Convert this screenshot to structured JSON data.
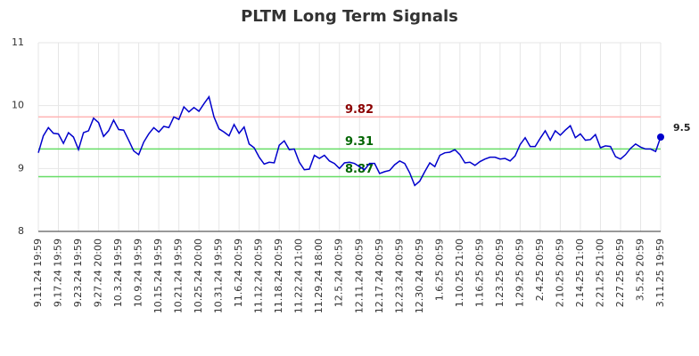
{
  "chart_data": {
    "type": "line",
    "title": "PLTM Long Term Signals",
    "categories": [
      "9.11.24 19:59",
      null,
      null,
      null,
      "9.17.24 19:59",
      null,
      null,
      null,
      "9.23.24 19:59",
      null,
      null,
      null,
      "9.27.24 20:00",
      null,
      null,
      null,
      "10.3.24 19:59",
      null,
      null,
      null,
      "10.9.24 19:59",
      null,
      null,
      null,
      "10.15.24 19:59",
      null,
      null,
      null,
      "10.21.24 19:59",
      null,
      null,
      null,
      "10.25.24 20:00",
      null,
      null,
      null,
      "10.31.24 19:59",
      null,
      null,
      null,
      "11.6.24 20:59",
      null,
      null,
      null,
      "11.12.24 20:59",
      null,
      null,
      null,
      "11.18.24 20:59",
      null,
      null,
      null,
      "11.22.24 21:00",
      null,
      null,
      null,
      "11.29.24 18:00",
      null,
      null,
      null,
      "12.5.24 20:59",
      null,
      null,
      null,
      "12.11.24 20:59",
      null,
      null,
      null,
      "12.17.24 20:59",
      null,
      null,
      null,
      "12.23.24 20:59",
      null,
      null,
      null,
      "12.30.24 20:59",
      null,
      null,
      null,
      "1.6.25 20:59",
      null,
      null,
      null,
      "1.10.25 21:00",
      null,
      null,
      null,
      "1.16.25 20:59",
      null,
      null,
      null,
      "1.23.25 20:59",
      null,
      null,
      null,
      "1.29.25 20:59",
      null,
      null,
      null,
      "2.4.25 20:59",
      null,
      null,
      null,
      "2.10.25 20:59",
      null,
      null,
      null,
      "2.14.25 21:00",
      null,
      null,
      null,
      "2.21.25 21:00",
      null,
      null,
      null,
      "2.27.25 20:59",
      null,
      null,
      null,
      "3.5.25 20:59",
      null,
      null,
      null,
      "3.11.25 19:59"
    ],
    "series": [
      {
        "name": "PLTM",
        "color": "#0000cc",
        "values": [
          9.25,
          9.52,
          9.65,
          9.56,
          9.55,
          9.4,
          9.57,
          9.5,
          9.3,
          9.57,
          9.6,
          9.8,
          9.73,
          9.51,
          9.6,
          9.77,
          9.62,
          9.61,
          9.45,
          9.28,
          9.22,
          9.42,
          9.55,
          9.65,
          9.58,
          9.67,
          9.65,
          9.82,
          9.78,
          9.98,
          9.9,
          9.97,
          9.91,
          10.03,
          10.14,
          9.82,
          9.63,
          9.58,
          9.52,
          9.7,
          9.56,
          9.66,
          9.39,
          9.33,
          9.18,
          9.07,
          9.1,
          9.09,
          9.37,
          9.44,
          9.3,
          9.31,
          9.1,
          8.98,
          8.99,
          9.21,
          9.16,
          9.21,
          9.12,
          9.08,
          9.0,
          9.09,
          9.1,
          9.08,
          9.03,
          8.98,
          9.08,
          9.08,
          8.92,
          8.95,
          8.97,
          9.06,
          9.12,
          9.08,
          8.93,
          8.73,
          8.8,
          8.95,
          9.09,
          9.03,
          9.21,
          9.25,
          9.26,
          9.3,
          9.22,
          9.09,
          9.1,
          9.05,
          9.11,
          9.15,
          9.18,
          9.18,
          9.15,
          9.16,
          9.12,
          9.2,
          9.38,
          9.49,
          9.35,
          9.35,
          9.48,
          9.6,
          9.45,
          9.6,
          9.53,
          9.61,
          9.68,
          9.49,
          9.55,
          9.45,
          9.46,
          9.54,
          9.33,
          9.36,
          9.35,
          9.19,
          9.15,
          9.22,
          9.32,
          9.39,
          9.34,
          9.31,
          9.31,
          9.27,
          9.5
        ]
      }
    ],
    "lines": [
      {
        "value": 9.82,
        "color": "#ffb3b3",
        "label_color": "#8b0000"
      },
      {
        "value": 9.31,
        "color": "#66dd66",
        "label_color": "#006400"
      },
      {
        "value": 8.87,
        "color": "#66dd66",
        "label_color": "#006400"
      }
    ],
    "ylim": [
      8,
      11
    ],
    "yticks": [
      8,
      9,
      10,
      11
    ],
    "grid": true
  }
}
